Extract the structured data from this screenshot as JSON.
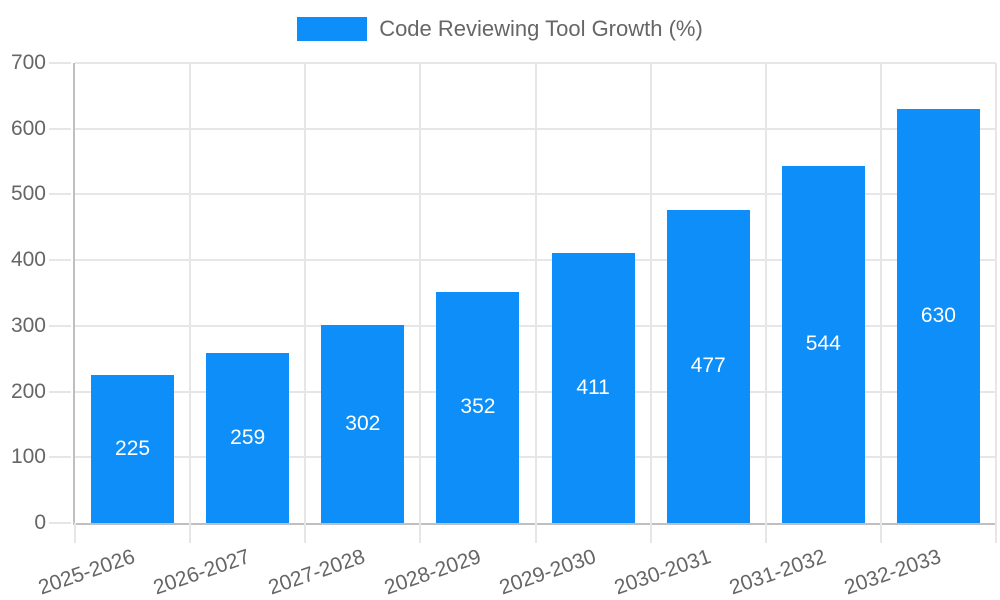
{
  "chart_data": {
    "type": "bar",
    "title": "Code Reviewing Tool Growth (%)",
    "legend_position": "top",
    "categories": [
      "2025-2026",
      "2026-2027",
      "2027-2028",
      "2028-2029",
      "2029-2030",
      "2030-2031",
      "2031-2032",
      "2032-2033"
    ],
    "series": [
      {
        "name": "Code Reviewing Tool Growth (%)",
        "values": [
          225,
          259,
          302,
          352,
          411,
          477,
          544,
          630
        ]
      }
    ],
    "value_labels_shown": true,
    "xlabel": "",
    "ylabel": "",
    "ylim": [
      0,
      700
    ],
    "y_ticks": [
      0,
      100,
      200,
      300,
      400,
      500,
      600,
      700
    ],
    "grid": true,
    "x_tick_rotation_deg": -19,
    "colors": {
      "bar": "#0d8ef8",
      "bar_label": "#ffffff",
      "axis_text": "#666666",
      "gridline": "#e6e6e6",
      "axis_line": "#bfbfbf",
      "background": "#ffffff"
    }
  }
}
